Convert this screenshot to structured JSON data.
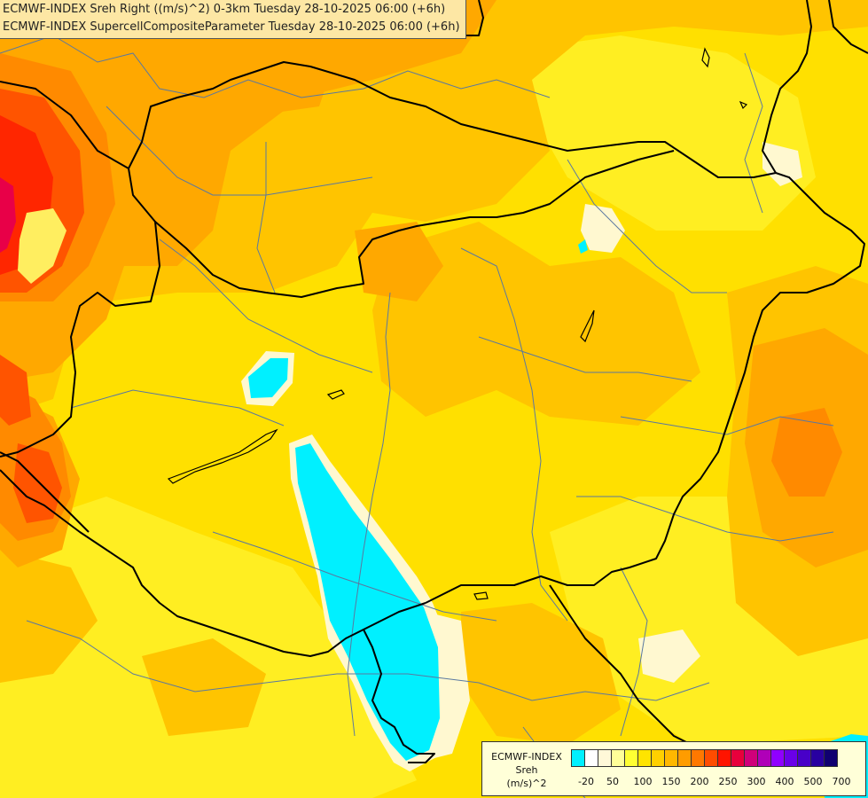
{
  "header": {
    "line1": "ECMWF-INDEX Sreh Right ((m/s)^2) 0-3km Tuesday 28-10-2025 06:00 (+6h)",
    "line2": "ECMWF-INDEX SupercellCompositeParameter Tuesday 28-10-2025 06:00 (+6h)"
  },
  "legend": {
    "line1": "ECMWF-INDEX",
    "line2": "Sreh",
    "line3": "(m/s)^2",
    "colors": [
      "#00f0ff",
      "#ffffff",
      "#fff8d8",
      "#ffff99",
      "#ffff33",
      "#ffe400",
      "#ffd000",
      "#ffb800",
      "#ff9c00",
      "#ff7800",
      "#ff4c00",
      "#ff1400",
      "#e8003c",
      "#d0007a",
      "#b000b8",
      "#9000ff",
      "#6a00e8",
      "#4800c8",
      "#2800a0",
      "#100070"
    ],
    "tick_labels": [
      "-20",
      "50",
      "100",
      "150",
      "200",
      "250",
      "300",
      "400",
      "500",
      "700"
    ]
  },
  "map": {
    "colors": {
      "base": "#ffe000",
      "yellow_light": "#ffee22",
      "orange_light": "#ffc400",
      "orange": "#ffa800",
      "orange_deep": "#ff8a00",
      "red_orange": "#ff5400",
      "red": "#ff2600",
      "magenta": "#e80048",
      "pale": "#fff8d0",
      "cyan": "#00f0ff",
      "border": "#000000",
      "river": "#5a78a0"
    }
  }
}
